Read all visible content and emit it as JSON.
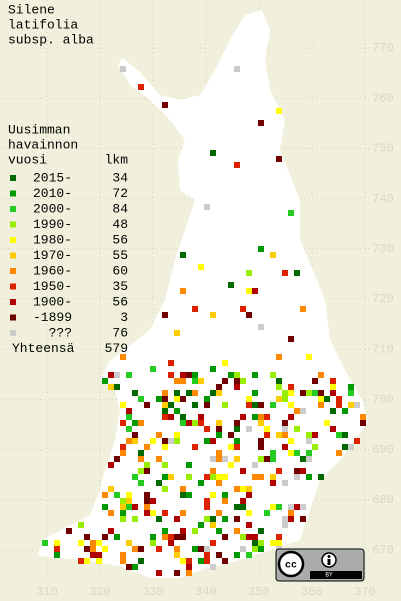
{
  "title": [
    "Silene",
    "latifolia",
    "subsp. alba"
  ],
  "legend": {
    "heading": [
      "Uusimman",
      "havainnon",
      "vuosi"
    ],
    "count_header": "lkm",
    "entries": [
      {
        "label": "2015-",
        "count": 34,
        "color": "#006a00"
      },
      {
        "label": "2010-",
        "count": 72,
        "color": "#009a00"
      },
      {
        "label": "2000-",
        "count": 84,
        "color": "#22cc22"
      },
      {
        "label": "1990-",
        "count": 48,
        "color": "#99ee00"
      },
      {
        "label": "1980-",
        "count": 56,
        "color": "#ffff00"
      },
      {
        "label": "1970-",
        "count": 55,
        "color": "#ffcc00"
      },
      {
        "label": "1960-",
        "count": 60,
        "color": "#ff8800"
      },
      {
        "label": "1950-",
        "count": 35,
        "color": "#dd2200"
      },
      {
        "label": "1900-",
        "count": 56,
        "color": "#b00000"
      },
      {
        "label": "-1899",
        "count": 3,
        "color": "#700000"
      },
      {
        "label": "???",
        "count": 76,
        "color": "#cccccc"
      }
    ],
    "total_label": "Yhteensä",
    "total": 579
  },
  "axes": {
    "x_ticks": [
      310,
      320,
      330,
      340,
      350,
      360,
      370
    ],
    "y_ticks": [
      670,
      680,
      690,
      700,
      710,
      720,
      730,
      740,
      750,
      760,
      770
    ]
  }
}
